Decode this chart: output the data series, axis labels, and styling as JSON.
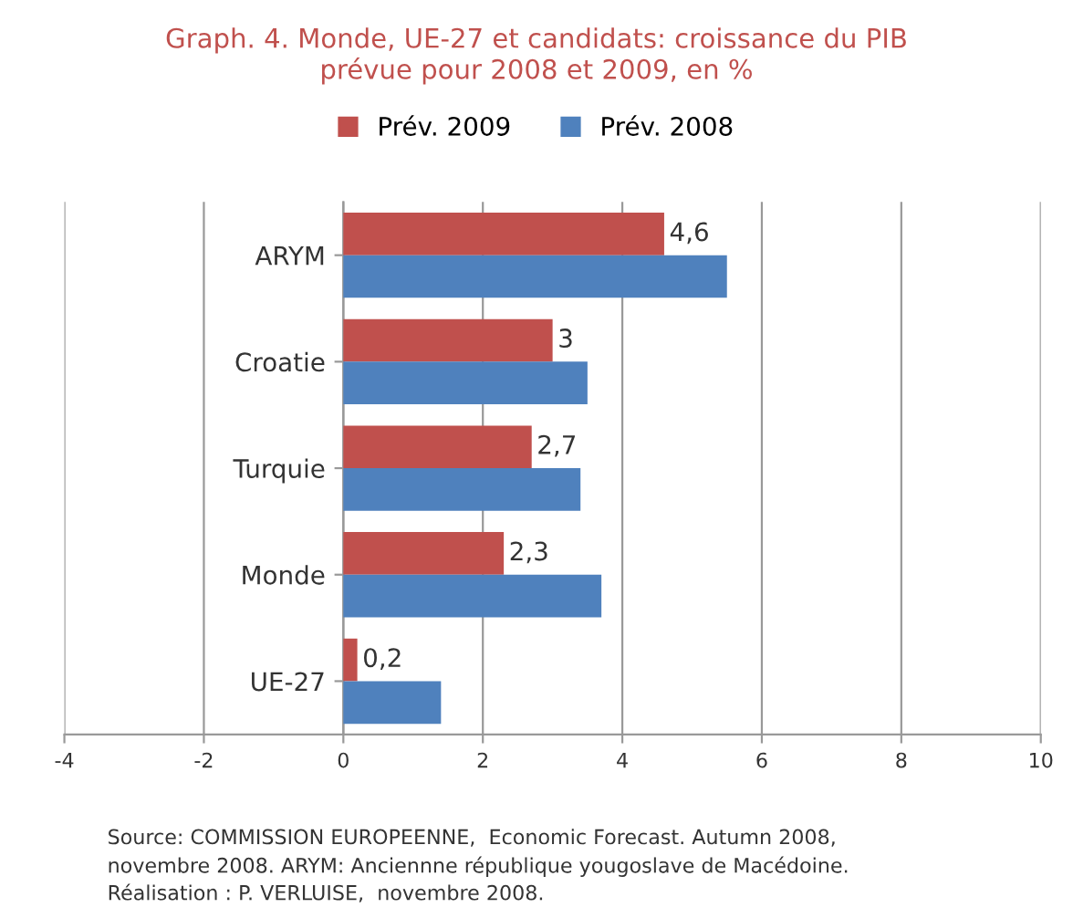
{
  "chart_data": {
    "type": "bar",
    "orientation": "horizontal",
    "title": "Graph. 4. Monde, UE-27 et candidats: croissance du PIB\nprévue pour 2008 et 2009, en %",
    "categories": [
      "ARYM",
      "Croatie",
      "Turquie",
      "Monde",
      "UE-27"
    ],
    "series": [
      {
        "name": "Prév. 2009",
        "color": "#c0504d",
        "values": [
          4.6,
          3,
          2.7,
          2.3,
          0.2
        ],
        "value_labels": [
          "4,6",
          "3",
          "2,7",
          "2,3",
          "0,2"
        ]
      },
      {
        "name": "Prév. 2008",
        "color": "#4f81bd",
        "values": [
          5.5,
          3.5,
          3.4,
          3.7,
          1.4
        ]
      }
    ],
    "xlim": [
      -4,
      10
    ],
    "xticks": [
      -4,
      -2,
      0,
      2,
      4,
      6,
      8,
      10
    ],
    "grid": "x",
    "legend": "top",
    "annotations": [
      "Source: COMMISSION EUROPEENNE,  Economic Forecast. Autumn 2008,\nnovembre 2008. ARYM: Anciennne république yougoslave de Macédoine.\nRéalisation : P. VERLUISE,  novembre 2008."
    ]
  }
}
